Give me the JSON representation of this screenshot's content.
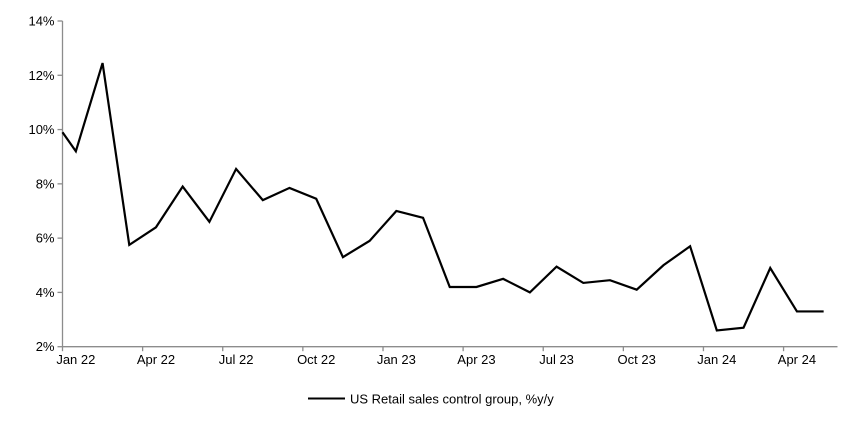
{
  "chart_data": {
    "type": "line",
    "title": "",
    "xlabel": "",
    "ylabel": "",
    "x": [
      "Dec 21",
      "Jan 22",
      "Feb 22",
      "Mar 22",
      "Apr 22",
      "May 22",
      "Jun 22",
      "Jul 22",
      "Aug 22",
      "Sep 22",
      "Oct 22",
      "Nov 22",
      "Dec 22",
      "Jan 23",
      "Feb 23",
      "Mar 23",
      "Apr 23",
      "May 23",
      "Jun 23",
      "Jul 23",
      "Aug 23",
      "Sep 23",
      "Oct 23",
      "Nov 23",
      "Dec 23",
      "Jan 24",
      "Feb 24",
      "Mar 24",
      "Apr 24",
      "May 24"
    ],
    "series": [
      {
        "name": "US Retail sales control group, %y/y",
        "color": "#000000",
        "values": [
          9.9,
          9.2,
          12.45,
          5.75,
          6.4,
          7.9,
          6.6,
          8.55,
          7.4,
          7.85,
          7.45,
          5.3,
          5.9,
          7.0,
          6.75,
          4.2,
          4.2,
          4.5,
          4.0,
          4.95,
          4.35,
          4.45,
          4.1,
          5.0,
          5.7,
          2.6,
          2.7,
          4.9,
          3.3,
          3.3
        ]
      }
    ],
    "ylim": [
      2,
      14
    ],
    "ytick_step": 2,
    "ytick_labels": [
      "2%",
      "4%",
      "6%",
      "8%",
      "10%",
      "12%",
      "14%"
    ],
    "xtick_labels": [
      "Jan 22",
      "Apr 22",
      "Jul 22",
      "Oct 22",
      "Jan 23",
      "Apr 23",
      "Jul 23",
      "Oct 23",
      "Jan 24",
      "Apr 24"
    ],
    "xtick_label_interval_months": 3,
    "legend_position": "bottom-center",
    "grid": false,
    "axis_color": "#8c8c8c",
    "text_color": "#000000",
    "background": "#ffffff",
    "first_point_on_axis": true
  }
}
